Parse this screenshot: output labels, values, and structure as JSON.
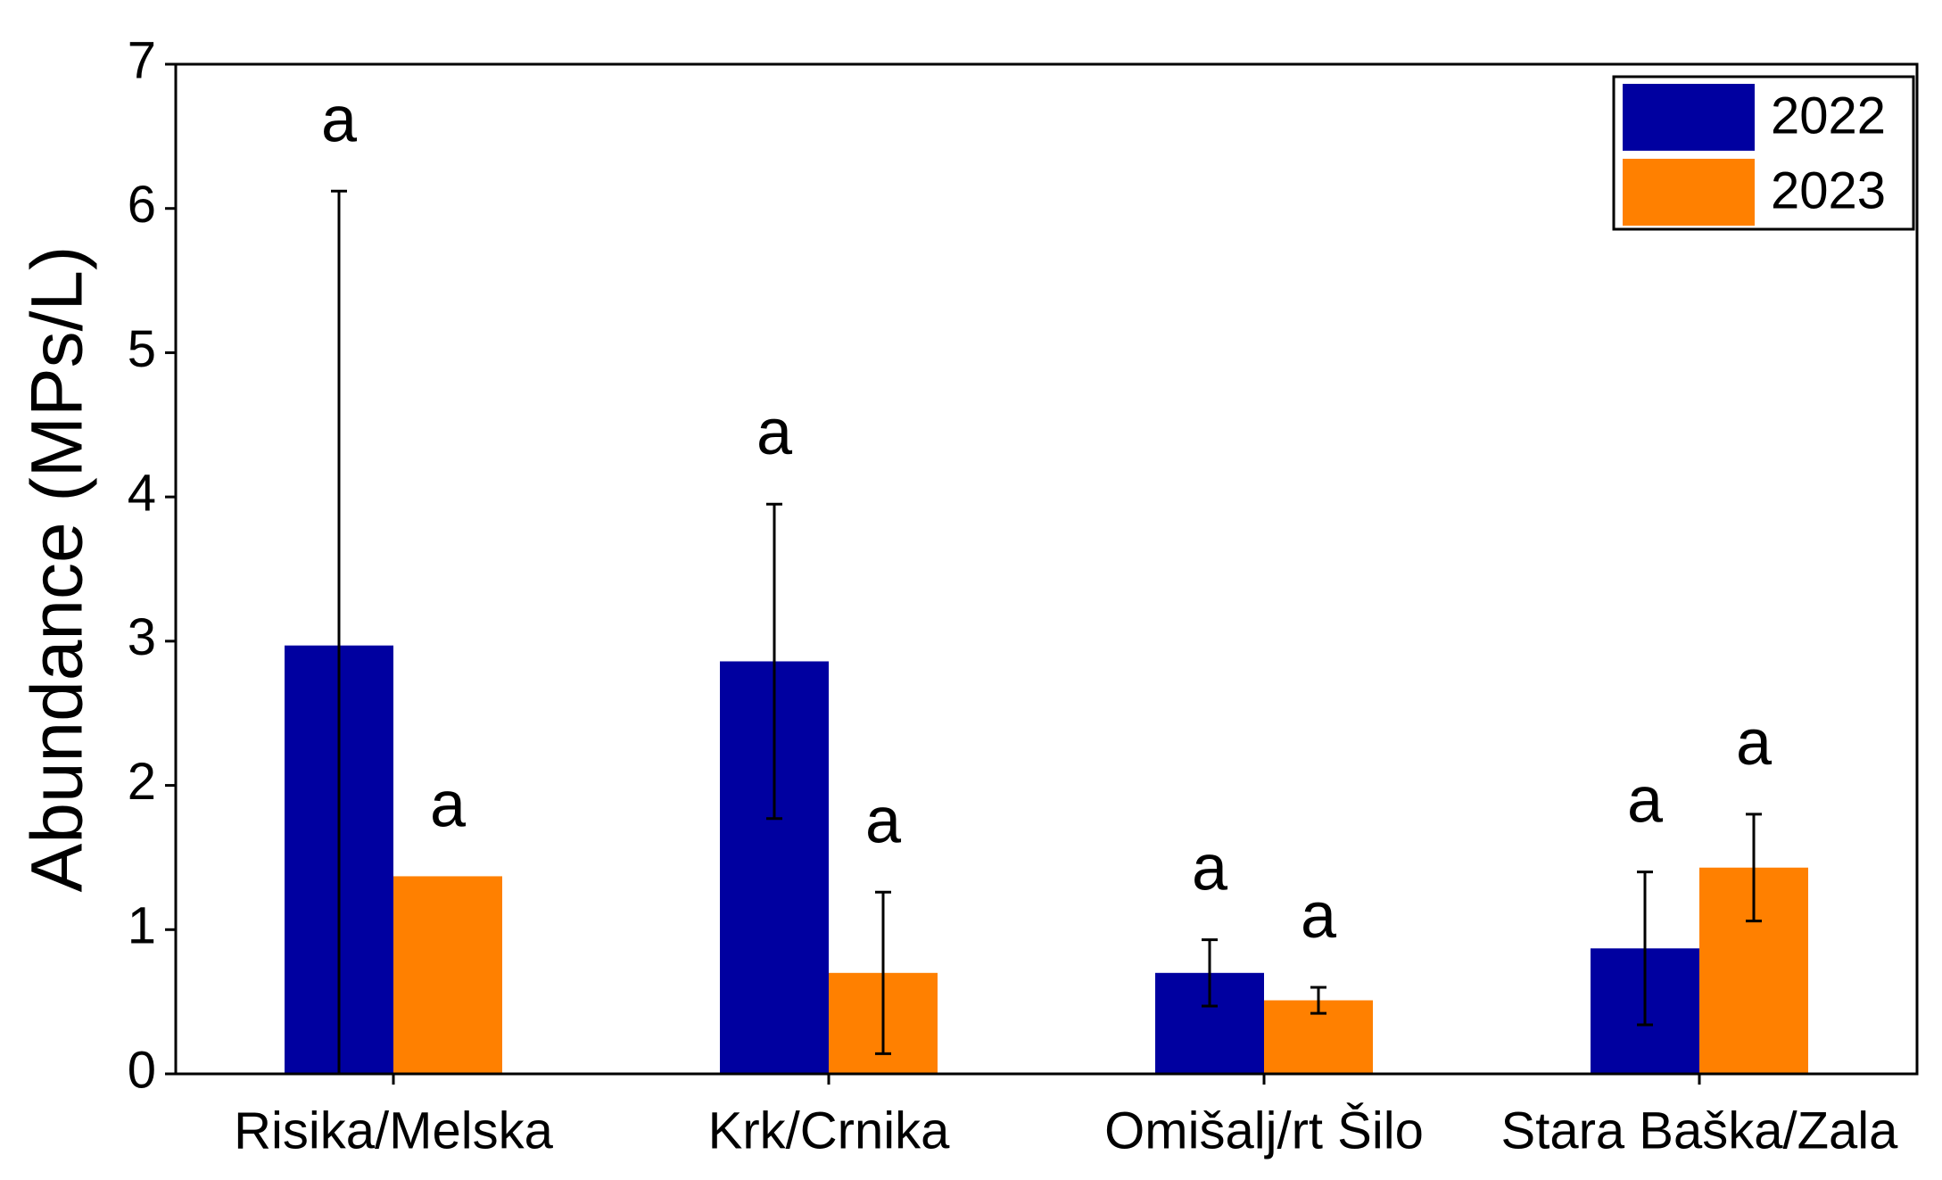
{
  "chart_data": {
    "type": "bar",
    "ylabel": "Abundance (MPs/L)",
    "categories": [
      "Risika/Melska",
      "Krk/Crnika",
      "Omišalj/rt Šilo",
      "Stara Baška/Zala"
    ],
    "series": [
      {
        "name": "2022",
        "color": "#0000a0",
        "values": [
          2.97,
          2.86,
          0.7,
          0.87
        ],
        "errors": [
          3.15,
          1.09,
          0.23,
          0.53
        ],
        "annotations": [
          "a",
          "a",
          "a",
          "a"
        ]
      },
      {
        "name": "2023",
        "color": "#ff8000",
        "values": [
          1.37,
          0.7,
          0.51,
          1.43
        ],
        "errors": [
          null,
          0.56,
          0.09,
          0.37
        ],
        "annotations": [
          "a",
          "a",
          "a",
          "a"
        ]
      }
    ],
    "ylim": [
      0,
      7
    ],
    "yticks": [
      0,
      1,
      2,
      3,
      4,
      5,
      6,
      7
    ],
    "grid": false,
    "legend": "top-right"
  }
}
